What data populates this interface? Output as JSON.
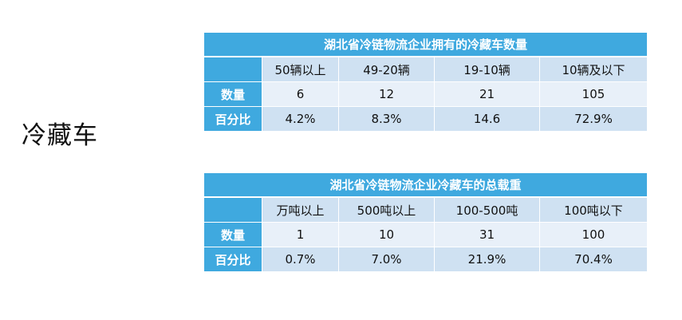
{
  "side_title": "冷藏车",
  "table1": {
    "title": "湖北省冷链物流企业拥有的冷藏车数量",
    "headers": [
      "50辆以上",
      "49-20辆",
      "19-10辆",
      "10辆及以下"
    ],
    "rows": [
      {
        "label": "数量",
        "values": [
          "6",
          "12",
          "21",
          "105"
        ]
      },
      {
        "label": "百分比",
        "values": [
          "4.2%",
          "8.3%",
          "14.6",
          "72.9%"
        ]
      }
    ]
  },
  "table2": {
    "title": "湖北省冷链物流企业冷藏车的总载重",
    "headers": [
      "万吨以上",
      "500吨以上",
      "100-500吨",
      "100吨以下"
    ],
    "rows": [
      {
        "label": "数量",
        "values": [
          "1",
          "10",
          "31",
          "100"
        ]
      },
      {
        "label": "百分比",
        "values": [
          "0.7%",
          "7.0%",
          "21.9%",
          "70.4%"
        ]
      }
    ]
  },
  "colors": {
    "header_blue": "#3fa9df",
    "row_dark": "#cfe1f2",
    "row_light": "#e8f0f9"
  }
}
